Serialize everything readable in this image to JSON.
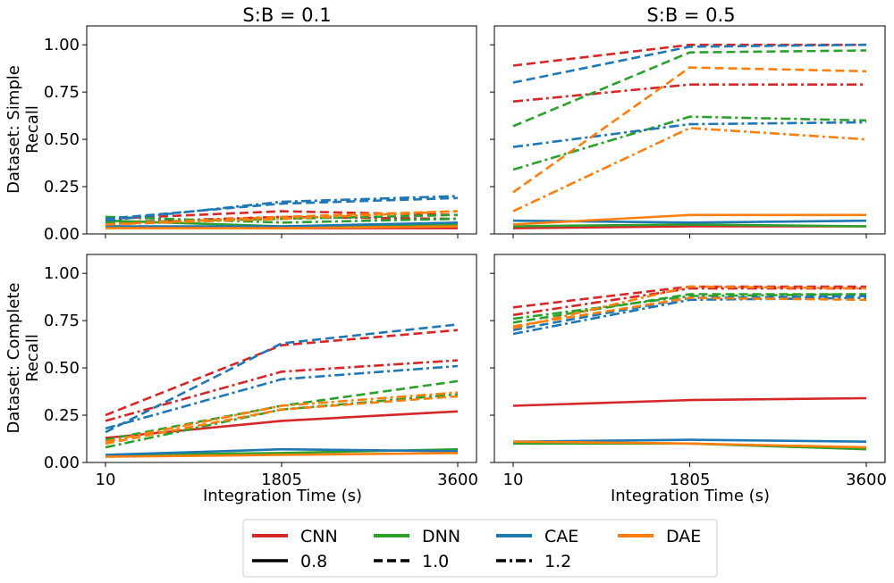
{
  "chart_data": {
    "type": "line",
    "columns": [
      {
        "title": "S:B = 0.1"
      },
      {
        "title": "S:B = 0.5"
      }
    ],
    "rows": [
      {
        "ylabel_line1": "Dataset: Simple",
        "ylabel_line2": "Recall"
      },
      {
        "ylabel_line1": "Dataset: Complete",
        "ylabel_line2": "Recall"
      }
    ],
    "xlabel": "Integration Time (s)",
    "xticks": [
      10,
      1805,
      3600
    ],
    "xlim": [
      10,
      3600
    ],
    "yticks": [
      0.0,
      0.25,
      0.5,
      0.75,
      1.0
    ],
    "ytick_labels": [
      "0.00",
      "0.25",
      "0.50",
      "0.75",
      "1.00"
    ],
    "ylim": [
      0,
      1.1
    ],
    "grid": false,
    "legend": {
      "placement": "bottom-center",
      "models": [
        {
          "name": "CNN",
          "color": "#d62728"
        },
        {
          "name": "DNN",
          "color": "#2ca02c"
        },
        {
          "name": "CAE",
          "color": "#1f77b4"
        },
        {
          "name": "DAE",
          "color": "#ff7f0e"
        }
      ],
      "styles": [
        {
          "name": "0.8",
          "dash": "solid"
        },
        {
          "name": "1.0",
          "dash": "dashed"
        },
        {
          "name": "1.2",
          "dash": "dashdot"
        }
      ]
    },
    "x": [
      10,
      1805,
      3600
    ],
    "panels": [
      {
        "row": 0,
        "col": 0,
        "series": [
          {
            "model": "CNN",
            "style": "0.8",
            "values": [
              0.04,
              0.03,
              0.03
            ]
          },
          {
            "model": "CNN",
            "style": "1.0",
            "values": [
              0.08,
              0.12,
              0.1
            ]
          },
          {
            "model": "CNN",
            "style": "1.2",
            "values": [
              0.06,
              0.09,
              0.08
            ]
          },
          {
            "model": "DNN",
            "style": "0.8",
            "values": [
              0.07,
              0.04,
              0.05
            ]
          },
          {
            "model": "DNN",
            "style": "1.0",
            "values": [
              0.06,
              0.08,
              0.1
            ]
          },
          {
            "model": "DNN",
            "style": "1.2",
            "values": [
              0.09,
              0.06,
              0.08
            ]
          },
          {
            "model": "CAE",
            "style": "0.8",
            "values": [
              0.04,
              0.04,
              0.06
            ]
          },
          {
            "model": "CAE",
            "style": "1.0",
            "values": [
              0.08,
              0.16,
              0.19
            ]
          },
          {
            "model": "CAE",
            "style": "1.2",
            "values": [
              0.07,
              0.17,
              0.2
            ]
          },
          {
            "model": "DAE",
            "style": "0.8",
            "values": [
              0.03,
              0.03,
              0.04
            ]
          },
          {
            "model": "DAE",
            "style": "1.0",
            "values": [
              0.05,
              0.09,
              0.12
            ]
          },
          {
            "model": "DAE",
            "style": "1.2",
            "values": [
              0.05,
              0.08,
              0.12
            ]
          }
        ]
      },
      {
        "row": 0,
        "col": 1,
        "series": [
          {
            "model": "CNN",
            "style": "0.8",
            "values": [
              0.03,
              0.04,
              0.04
            ]
          },
          {
            "model": "CNN",
            "style": "1.0",
            "values": [
              0.89,
              1.0,
              1.0
            ]
          },
          {
            "model": "CNN",
            "style": "1.2",
            "values": [
              0.7,
              0.79,
              0.79
            ]
          },
          {
            "model": "DNN",
            "style": "0.8",
            "values": [
              0.04,
              0.05,
              0.04
            ]
          },
          {
            "model": "DNN",
            "style": "1.0",
            "values": [
              0.57,
              0.96,
              0.97
            ]
          },
          {
            "model": "DNN",
            "style": "1.2",
            "values": [
              0.34,
              0.62,
              0.6
            ]
          },
          {
            "model": "CAE",
            "style": "0.8",
            "values": [
              0.07,
              0.06,
              0.07
            ]
          },
          {
            "model": "CAE",
            "style": "1.0",
            "values": [
              0.8,
              0.99,
              1.0
            ]
          },
          {
            "model": "CAE",
            "style": "1.2",
            "values": [
              0.46,
              0.58,
              0.59
            ]
          },
          {
            "model": "DAE",
            "style": "0.8",
            "values": [
              0.05,
              0.1,
              0.1
            ]
          },
          {
            "model": "DAE",
            "style": "1.0",
            "values": [
              0.22,
              0.88,
              0.86
            ]
          },
          {
            "model": "DAE",
            "style": "1.2",
            "values": [
              0.12,
              0.56,
              0.5
            ]
          }
        ]
      },
      {
        "row": 1,
        "col": 0,
        "series": [
          {
            "model": "CNN",
            "style": "0.8",
            "values": [
              0.13,
              0.22,
              0.27
            ]
          },
          {
            "model": "CNN",
            "style": "1.0",
            "values": [
              0.25,
              0.62,
              0.7
            ]
          },
          {
            "model": "CNN",
            "style": "1.2",
            "values": [
              0.22,
              0.48,
              0.54
            ]
          },
          {
            "model": "DNN",
            "style": "0.8",
            "values": [
              0.04,
              0.05,
              0.07
            ]
          },
          {
            "model": "DNN",
            "style": "1.0",
            "values": [
              0.12,
              0.3,
              0.43
            ]
          },
          {
            "model": "DNN",
            "style": "1.2",
            "values": [
              0.08,
              0.28,
              0.36
            ]
          },
          {
            "model": "CAE",
            "style": "0.8",
            "values": [
              0.04,
              0.07,
              0.06
            ]
          },
          {
            "model": "CAE",
            "style": "1.0",
            "values": [
              0.16,
              0.63,
              0.73
            ]
          },
          {
            "model": "CAE",
            "style": "1.2",
            "values": [
              0.18,
              0.44,
              0.51
            ]
          },
          {
            "model": "DAE",
            "style": "0.8",
            "values": [
              0.03,
              0.04,
              0.05
            ]
          },
          {
            "model": "DAE",
            "style": "1.0",
            "values": [
              0.1,
              0.28,
              0.35
            ]
          },
          {
            "model": "DAE",
            "style": "1.2",
            "values": [
              0.11,
              0.3,
              0.37
            ]
          }
        ]
      },
      {
        "row": 1,
        "col": 1,
        "series": [
          {
            "model": "CNN",
            "style": "0.8",
            "values": [
              0.3,
              0.33,
              0.34
            ]
          },
          {
            "model": "CNN",
            "style": "1.0",
            "values": [
              0.82,
              0.93,
              0.93
            ]
          },
          {
            "model": "CNN",
            "style": "1.2",
            "values": [
              0.78,
              0.92,
              0.92
            ]
          },
          {
            "model": "DNN",
            "style": "0.8",
            "values": [
              0.1,
              0.1,
              0.07
            ]
          },
          {
            "model": "DNN",
            "style": "1.0",
            "values": [
              0.74,
              0.89,
              0.89
            ]
          },
          {
            "model": "DNN",
            "style": "1.2",
            "values": [
              0.76,
              0.88,
              0.89
            ]
          },
          {
            "model": "CAE",
            "style": "0.8",
            "values": [
              0.11,
              0.12,
              0.11
            ]
          },
          {
            "model": "CAE",
            "style": "1.0",
            "values": [
              0.7,
              0.87,
              0.88
            ]
          },
          {
            "model": "CAE",
            "style": "1.2",
            "values": [
              0.68,
              0.86,
              0.87
            ]
          },
          {
            "model": "DAE",
            "style": "0.8",
            "values": [
              0.11,
              0.1,
              0.08
            ]
          },
          {
            "model": "DAE",
            "style": "1.0",
            "values": [
              0.72,
              0.87,
              0.86
            ]
          },
          {
            "model": "DAE",
            "style": "1.2",
            "values": [
              0.71,
              0.93,
              0.92
            ]
          }
        ]
      }
    ]
  }
}
